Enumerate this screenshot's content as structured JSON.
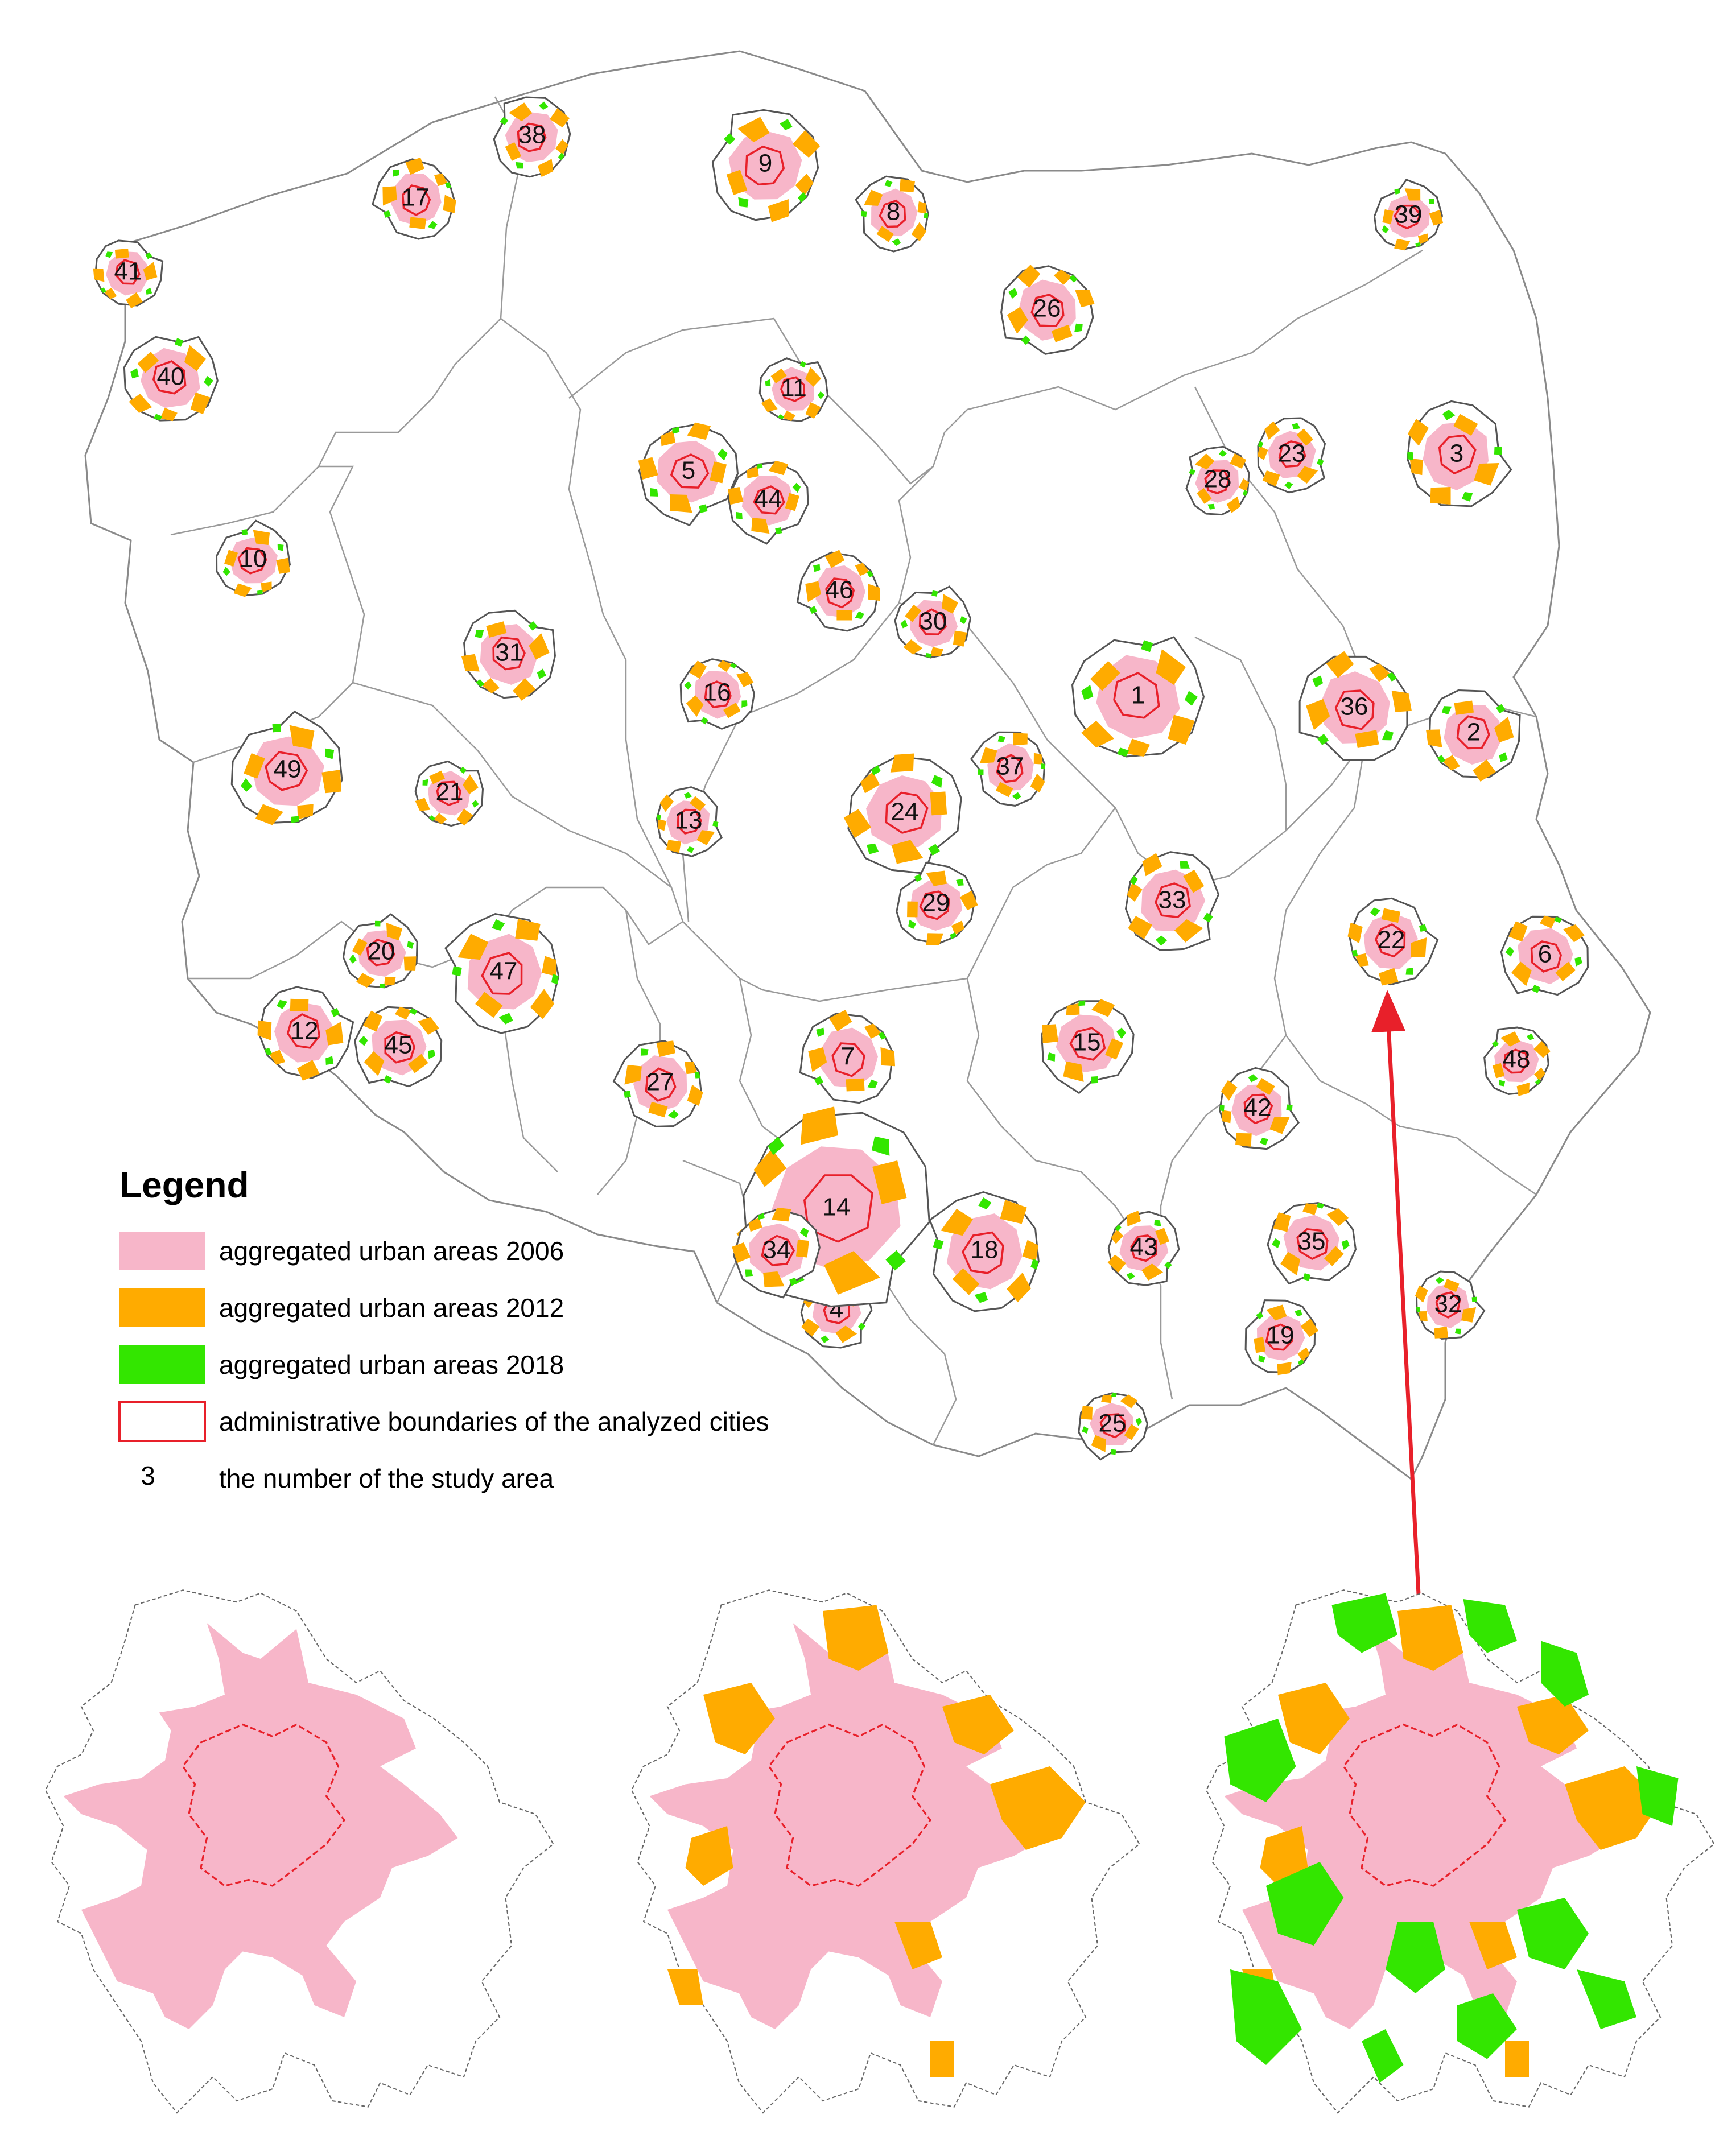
{
  "legend": {
    "title": "Legend",
    "items": [
      {
        "label": "aggregated urban areas 2006",
        "color": "#f7b6c9",
        "kind": "fill"
      },
      {
        "label": "aggregated urban areas 2012",
        "color": "#ffab00",
        "kind": "fill"
      },
      {
        "label": "aggregated urban areas 2018",
        "color": "#33e600",
        "kind": "fill"
      },
      {
        "label": "administrative boundaries of the analyzed cities",
        "color": "#e8202a",
        "kind": "outline"
      },
      {
        "label": "the number of the study area",
        "number": "3",
        "kind": "number"
      }
    ]
  },
  "colors": {
    "urban2006": "#f7b6c9",
    "urban2012": "#ffab00",
    "urban2018": "#33e600",
    "cityBoundary": "#e8202a",
    "regionBorder": "#8a8a8a",
    "arrow": "#e8202a"
  },
  "study_areas": [
    {
      "n": "1"
    },
    {
      "n": "2"
    },
    {
      "n": "3"
    },
    {
      "n": "4"
    },
    {
      "n": "5"
    },
    {
      "n": "6"
    },
    {
      "n": "7"
    },
    {
      "n": "8"
    },
    {
      "n": "9"
    },
    {
      "n": "10"
    },
    {
      "n": "11"
    },
    {
      "n": "12"
    },
    {
      "n": "13"
    },
    {
      "n": "14"
    },
    {
      "n": "15"
    },
    {
      "n": "16"
    },
    {
      "n": "17"
    },
    {
      "n": "18"
    },
    {
      "n": "19"
    },
    {
      "n": "20"
    },
    {
      "n": "21"
    },
    {
      "n": "22"
    },
    {
      "n": "23"
    },
    {
      "n": "24"
    },
    {
      "n": "25"
    },
    {
      "n": "26"
    },
    {
      "n": "27"
    },
    {
      "n": "28"
    },
    {
      "n": "29"
    },
    {
      "n": "30"
    },
    {
      "n": "31"
    },
    {
      "n": "32"
    },
    {
      "n": "33"
    },
    {
      "n": "34"
    },
    {
      "n": "35"
    },
    {
      "n": "36"
    },
    {
      "n": "37"
    },
    {
      "n": "38"
    },
    {
      "n": "39"
    },
    {
      "n": "40"
    },
    {
      "n": "41"
    },
    {
      "n": "42"
    },
    {
      "n": "43"
    },
    {
      "n": "44"
    },
    {
      "n": "45"
    },
    {
      "n": "46"
    },
    {
      "n": "47"
    },
    {
      "n": "48"
    },
    {
      "n": "49"
    }
  ],
  "detail": {
    "study_area": "22",
    "panels": [
      {
        "year": "2006",
        "layers": [
          "urban2006"
        ]
      },
      {
        "year": "2012",
        "layers": [
          "urban2006",
          "urban2012"
        ]
      },
      {
        "year": "2018",
        "layers": [
          "urban2006",
          "urban2012",
          "urban2018"
        ]
      }
    ]
  }
}
